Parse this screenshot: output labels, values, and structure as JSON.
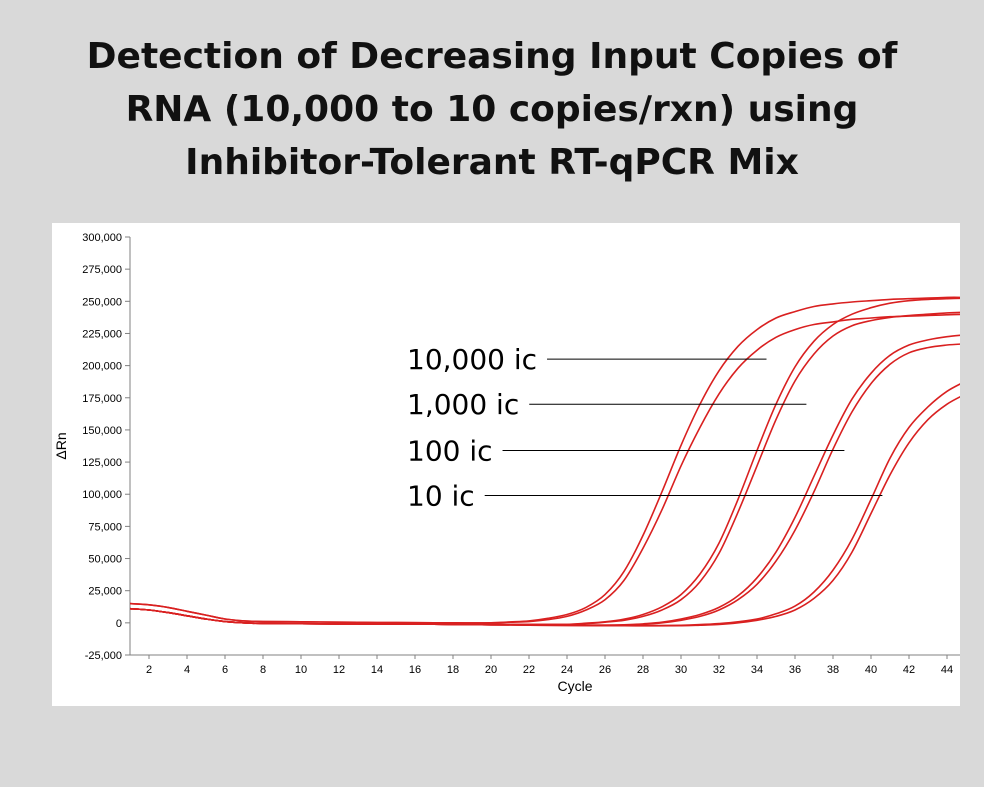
{
  "slide": {
    "title_lines": [
      "Detection of Decreasing Input Copies of",
      "RNA (10,000 to 10 copies/rxn) using",
      "Inhibitor-Tolerant RT-qPCR Mix"
    ]
  },
  "colors": {
    "curve": "#d92020",
    "axis": "#808080",
    "panel": "#ffffff",
    "background": "#d9d9d9"
  },
  "chart_data": {
    "type": "line",
    "title": "",
    "xlabel": "Cycle",
    "ylabel": "ΔRn",
    "xlim": [
      1,
      45
    ],
    "ylim": [
      -25000,
      300000
    ],
    "x_ticks": [
      2,
      4,
      6,
      8,
      10,
      12,
      14,
      16,
      18,
      20,
      22,
      24,
      26,
      28,
      30,
      32,
      34,
      36,
      38,
      40,
      42,
      44
    ],
    "x_tick_labels": [
      "2",
      "4",
      "6",
      "8",
      "10",
      "12",
      "14",
      "16",
      "18",
      "20",
      "22",
      "24",
      "26",
      "28",
      "30",
      "32",
      "34",
      "36",
      "38",
      "40",
      "42",
      "44"
    ],
    "y_ticks": [
      -25000,
      0,
      25000,
      50000,
      75000,
      100000,
      125000,
      150000,
      175000,
      200000,
      225000,
      250000,
      275000,
      300000
    ],
    "y_tick_labels": [
      "-25,000",
      "0",
      "25,000",
      "50,000",
      "75,000",
      "100,000",
      "125,000",
      "150,000",
      "175,000",
      "200,000",
      "225,000",
      "250,000",
      "275,000",
      "300,000"
    ],
    "grid": false,
    "legend": "none",
    "annotations": [
      {
        "text": "10,000 ic",
        "pointer_cycle": 34.5,
        "pointer_value": 205000
      },
      {
        "text": "1,000 ic",
        "pointer_cycle": 36.6,
        "pointer_value": 170000
      },
      {
        "text": "100 ic",
        "pointer_cycle": 38.6,
        "pointer_value": 134000
      },
      {
        "text": "10 ic",
        "pointer_cycle": 40.6,
        "pointer_value": 99000
      }
    ],
    "series": [
      {
        "group": "10,000 ic",
        "replicate": 1,
        "values": [
          [
            1,
            15000
          ],
          [
            2,
            14000
          ],
          [
            3,
            12000
          ],
          [
            4,
            9000
          ],
          [
            5,
            6000
          ],
          [
            6,
            3000
          ],
          [
            7,
            1500
          ],
          [
            8,
            1000
          ],
          [
            10,
            800
          ],
          [
            12,
            500
          ],
          [
            14,
            300
          ],
          [
            16,
            100
          ],
          [
            18,
            0
          ],
          [
            20,
            0
          ],
          [
            21,
            500
          ],
          [
            22,
            1000
          ],
          [
            23,
            2500
          ],
          [
            24,
            5000
          ],
          [
            25,
            10000
          ],
          [
            26,
            18000
          ],
          [
            27,
            33000
          ],
          [
            28,
            58000
          ],
          [
            29,
            88000
          ],
          [
            30,
            122000
          ],
          [
            31,
            152000
          ],
          [
            32,
            178000
          ],
          [
            33,
            198000
          ],
          [
            34,
            212000
          ],
          [
            35,
            222000
          ],
          [
            36,
            228000
          ],
          [
            37,
            232000
          ],
          [
            38,
            234000
          ],
          [
            39,
            236000
          ],
          [
            40,
            237000
          ],
          [
            41,
            238000
          ],
          [
            42,
            238500
          ],
          [
            43,
            239000
          ],
          [
            44,
            239500
          ],
          [
            45,
            240000
          ]
        ]
      },
      {
        "group": "10,000 ic",
        "replicate": 2,
        "values": [
          [
            1,
            15000
          ],
          [
            2,
            14000
          ],
          [
            3,
            12000
          ],
          [
            4,
            9000
          ],
          [
            5,
            6000
          ],
          [
            6,
            3000
          ],
          [
            7,
            1500
          ],
          [
            8,
            1000
          ],
          [
            10,
            800
          ],
          [
            12,
            500
          ],
          [
            14,
            300
          ],
          [
            16,
            100
          ],
          [
            18,
            0
          ],
          [
            20,
            0
          ],
          [
            21,
            700
          ],
          [
            22,
            1500
          ],
          [
            23,
            3500
          ],
          [
            24,
            6500
          ],
          [
            25,
            12000
          ],
          [
            26,
            22000
          ],
          [
            27,
            40000
          ],
          [
            28,
            68000
          ],
          [
            29,
            102000
          ],
          [
            30,
            138000
          ],
          [
            31,
            170000
          ],
          [
            32,
            196000
          ],
          [
            33,
            215000
          ],
          [
            34,
            228000
          ],
          [
            35,
            237000
          ],
          [
            36,
            242000
          ],
          [
            37,
            246000
          ],
          [
            38,
            248000
          ],
          [
            39,
            249500
          ],
          [
            40,
            250500
          ],
          [
            41,
            251500
          ],
          [
            42,
            252000
          ],
          [
            43,
            252500
          ],
          [
            44,
            253000
          ],
          [
            45,
            253000
          ]
        ]
      },
      {
        "group": "1,000 ic",
        "replicate": 1,
        "values": [
          [
            1,
            11000
          ],
          [
            2,
            10000
          ],
          [
            3,
            8000
          ],
          [
            4,
            5500
          ],
          [
            5,
            3000
          ],
          [
            6,
            1000
          ],
          [
            7,
            0
          ],
          [
            8,
            -500
          ],
          [
            10,
            -700
          ],
          [
            12,
            -800
          ],
          [
            14,
            -1000
          ],
          [
            16,
            -1000
          ],
          [
            18,
            -1200
          ],
          [
            20,
            -1200
          ],
          [
            22,
            -1200
          ],
          [
            24,
            -1200
          ],
          [
            25,
            -600
          ],
          [
            26,
            500
          ],
          [
            27,
            2000
          ],
          [
            28,
            5000
          ],
          [
            29,
            10000
          ],
          [
            30,
            18000
          ],
          [
            31,
            32000
          ],
          [
            32,
            54000
          ],
          [
            33,
            86000
          ],
          [
            34,
            122000
          ],
          [
            35,
            158000
          ],
          [
            36,
            188000
          ],
          [
            37,
            209000
          ],
          [
            38,
            223000
          ],
          [
            39,
            231000
          ],
          [
            40,
            235000
          ],
          [
            41,
            237500
          ],
          [
            42,
            239000
          ],
          [
            43,
            240000
          ],
          [
            44,
            241000
          ],
          [
            45,
            241500
          ]
        ]
      },
      {
        "group": "1,000 ic",
        "replicate": 2,
        "values": [
          [
            1,
            11000
          ],
          [
            2,
            10000
          ],
          [
            3,
            8000
          ],
          [
            4,
            5500
          ],
          [
            5,
            3000
          ],
          [
            6,
            1000
          ],
          [
            7,
            0
          ],
          [
            8,
            -500
          ],
          [
            10,
            -700
          ],
          [
            12,
            -800
          ],
          [
            14,
            -1000
          ],
          [
            16,
            -1000
          ],
          [
            18,
            -1200
          ],
          [
            20,
            -1200
          ],
          [
            22,
            -1200
          ],
          [
            24,
            -1200
          ],
          [
            25,
            -300
          ],
          [
            26,
            800
          ],
          [
            27,
            2800
          ],
          [
            28,
            6500
          ],
          [
            29,
            12500
          ],
          [
            30,
            22000
          ],
          [
            31,
            38000
          ],
          [
            32,
            62000
          ],
          [
            33,
            96000
          ],
          [
            34,
            134000
          ],
          [
            35,
            170000
          ],
          [
            36,
            199000
          ],
          [
            37,
            219000
          ],
          [
            38,
            232000
          ],
          [
            39,
            240000
          ],
          [
            40,
            245000
          ],
          [
            41,
            248500
          ],
          [
            42,
            250500
          ],
          [
            43,
            251500
          ],
          [
            44,
            252000
          ],
          [
            45,
            252500
          ]
        ]
      },
      {
        "group": "100 ic",
        "replicate": 1,
        "values": [
          [
            1,
            11000
          ],
          [
            2,
            10000
          ],
          [
            3,
            8000
          ],
          [
            4,
            5500
          ],
          [
            5,
            3000
          ],
          [
            6,
            1000
          ],
          [
            7,
            0
          ],
          [
            8,
            -500
          ],
          [
            10,
            -700
          ],
          [
            12,
            -800
          ],
          [
            14,
            -1000
          ],
          [
            16,
            -1000
          ],
          [
            18,
            -1200
          ],
          [
            20,
            -1500
          ],
          [
            22,
            -1500
          ],
          [
            24,
            -1800
          ],
          [
            26,
            -1800
          ],
          [
            27,
            -1700
          ],
          [
            28,
            -1200
          ],
          [
            29,
            0
          ],
          [
            30,
            2000
          ],
          [
            31,
            5000
          ],
          [
            32,
            10000
          ],
          [
            33,
            18000
          ],
          [
            34,
            30000
          ],
          [
            35,
            48000
          ],
          [
            36,
            72000
          ],
          [
            37,
            102000
          ],
          [
            38,
            135000
          ],
          [
            39,
            164000
          ],
          [
            40,
            186000
          ],
          [
            41,
            201000
          ],
          [
            42,
            210000
          ],
          [
            43,
            214000
          ],
          [
            44,
            216000
          ],
          [
            45,
            217000
          ]
        ]
      },
      {
        "group": "100 ic",
        "replicate": 2,
        "values": [
          [
            1,
            11000
          ],
          [
            2,
            10000
          ],
          [
            3,
            8000
          ],
          [
            4,
            5500
          ],
          [
            5,
            3000
          ],
          [
            6,
            1000
          ],
          [
            7,
            0
          ],
          [
            8,
            -500
          ],
          [
            10,
            -700
          ],
          [
            12,
            -800
          ],
          [
            14,
            -1000
          ],
          [
            16,
            -1000
          ],
          [
            18,
            -1200
          ],
          [
            20,
            -1500
          ],
          [
            22,
            -1500
          ],
          [
            24,
            -1800
          ],
          [
            26,
            -1800
          ],
          [
            27,
            -1500
          ],
          [
            28,
            -800
          ],
          [
            29,
            500
          ],
          [
            30,
            3000
          ],
          [
            31,
            6500
          ],
          [
            32,
            12000
          ],
          [
            33,
            21000
          ],
          [
            34,
            35000
          ],
          [
            35,
            55000
          ],
          [
            36,
            82000
          ],
          [
            37,
            114000
          ],
          [
            38,
            146000
          ],
          [
            39,
            174000
          ],
          [
            40,
            194000
          ],
          [
            41,
            208000
          ],
          [
            42,
            216000
          ],
          [
            43,
            220000
          ],
          [
            44,
            222500
          ],
          [
            45,
            224000
          ]
        ]
      },
      {
        "group": "10 ic",
        "replicate": 1,
        "values": [
          [
            1,
            11000
          ],
          [
            2,
            10000
          ],
          [
            3,
            8000
          ],
          [
            4,
            5500
          ],
          [
            5,
            3000
          ],
          [
            6,
            1000
          ],
          [
            7,
            0
          ],
          [
            8,
            -500
          ],
          [
            10,
            -700
          ],
          [
            12,
            -800
          ],
          [
            14,
            -1000
          ],
          [
            16,
            -1000
          ],
          [
            18,
            -1200
          ],
          [
            20,
            -1500
          ],
          [
            22,
            -1800
          ],
          [
            24,
            -2000
          ],
          [
            26,
            -2200
          ],
          [
            28,
            -2300
          ],
          [
            30,
            -2200
          ],
          [
            31,
            -1800
          ],
          [
            32,
            -1200
          ],
          [
            33,
            0
          ],
          [
            34,
            2000
          ],
          [
            35,
            5000
          ],
          [
            36,
            10000
          ],
          [
            37,
            19000
          ],
          [
            38,
            33000
          ],
          [
            39,
            55000
          ],
          [
            40,
            85000
          ],
          [
            41,
            115000
          ],
          [
            42,
            140000
          ],
          [
            43,
            158000
          ],
          [
            44,
            170000
          ],
          [
            45,
            178000
          ]
        ]
      },
      {
        "group": "10 ic",
        "replicate": 2,
        "values": [
          [
            1,
            11000
          ],
          [
            2,
            10000
          ],
          [
            3,
            8000
          ],
          [
            4,
            5500
          ],
          [
            5,
            3000
          ],
          [
            6,
            1000
          ],
          [
            7,
            0
          ],
          [
            8,
            -500
          ],
          [
            10,
            -700
          ],
          [
            12,
            -800
          ],
          [
            14,
            -1000
          ],
          [
            16,
            -1000
          ],
          [
            18,
            -1200
          ],
          [
            20,
            -1500
          ],
          [
            22,
            -1800
          ],
          [
            24,
            -2000
          ],
          [
            26,
            -2200
          ],
          [
            28,
            -2200
          ],
          [
            30,
            -1900
          ],
          [
            31,
            -1400
          ],
          [
            32,
            -600
          ],
          [
            33,
            800
          ],
          [
            34,
            3000
          ],
          [
            35,
            7000
          ],
          [
            36,
            13000
          ],
          [
            37,
            24000
          ],
          [
            38,
            41000
          ],
          [
            39,
            65000
          ],
          [
            40,
            96000
          ],
          [
            41,
            128000
          ],
          [
            42,
            152000
          ],
          [
            43,
            168000
          ],
          [
            44,
            180000
          ],
          [
            45,
            188000
          ]
        ]
      }
    ]
  }
}
